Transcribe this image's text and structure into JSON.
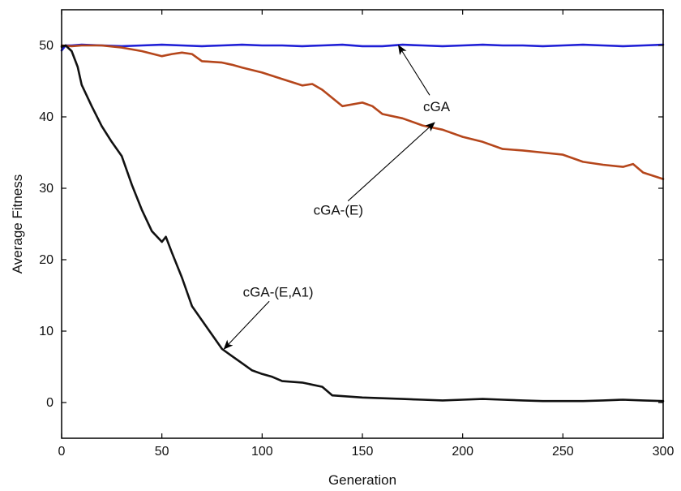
{
  "chart_data": {
    "type": "line",
    "xlabel": "Generation",
    "ylabel": "Average Fitness",
    "xlim": [
      0,
      300
    ],
    "ylim": [
      -5,
      55
    ],
    "x_ticks": [
      0,
      50,
      100,
      150,
      200,
      250,
      300
    ],
    "y_ticks": [
      0,
      10,
      20,
      30,
      40,
      50
    ],
    "grid": false,
    "series": [
      {
        "color": "#1f1fd6",
        "x": [
          0,
          2,
          5,
          10,
          20,
          30,
          40,
          50,
          60,
          70,
          80,
          90,
          100,
          110,
          120,
          130,
          140,
          150,
          160,
          170,
          180,
          190,
          200,
          210,
          220,
          230,
          240,
          250,
          260,
          270,
          280,
          290,
          300
        ],
        "y": [
          49.3,
          50.0,
          50.0,
          50.1,
          50.0,
          49.9,
          50.0,
          50.1,
          50.0,
          49.9,
          50.0,
          50.1,
          50.0,
          50.0,
          49.9,
          50.0,
          50.1,
          49.9,
          49.9,
          50.1,
          50.0,
          49.9,
          50.0,
          50.1,
          50.0,
          50.0,
          49.9,
          50.0,
          50.1,
          50.0,
          49.9,
          50.0,
          50.1
        ]
      },
      {
        "color": "#b5461b",
        "x": [
          0,
          5,
          10,
          20,
          30,
          40,
          50,
          55,
          60,
          65,
          70,
          80,
          85,
          90,
          100,
          110,
          120,
          125,
          130,
          140,
          150,
          155,
          160,
          170,
          180,
          190,
          200,
          210,
          220,
          230,
          240,
          250,
          255,
          260,
          270,
          280,
          285,
          290,
          300
        ],
        "y": [
          50.0,
          49.9,
          50.0,
          50.0,
          49.7,
          49.2,
          48.5,
          48.8,
          49.0,
          48.8,
          47.8,
          47.6,
          47.3,
          46.9,
          46.2,
          45.3,
          44.4,
          44.6,
          43.8,
          41.5,
          42.0,
          41.5,
          40.4,
          39.8,
          38.8,
          38.2,
          37.2,
          36.5,
          35.5,
          35.3,
          35.0,
          34.7,
          34.2,
          33.7,
          33.3,
          33.0,
          33.4,
          32.2,
          31.3
        ]
      },
      {
        "color": "#111111",
        "x": [
          0,
          2,
          5,
          8,
          10,
          15,
          20,
          25,
          30,
          35,
          40,
          45,
          50,
          52,
          55,
          60,
          65,
          70,
          75,
          80,
          85,
          90,
          95,
          100,
          105,
          110,
          120,
          130,
          135,
          140,
          150,
          160,
          170,
          180,
          190,
          200,
          210,
          220,
          230,
          240,
          250,
          260,
          270,
          280,
          290,
          300
        ],
        "y": [
          49.8,
          50.0,
          49.2,
          47.0,
          44.5,
          41.5,
          38.7,
          36.5,
          34.5,
          30.5,
          27.0,
          24.0,
          22.5,
          23.2,
          21.0,
          17.5,
          13.5,
          11.5,
          9.5,
          7.5,
          6.5,
          5.5,
          4.5,
          4.0,
          3.6,
          3.0,
          2.8,
          2.2,
          1.0,
          0.9,
          0.7,
          0.6,
          0.5,
          0.4,
          0.3,
          0.4,
          0.5,
          0.4,
          0.3,
          0.2,
          0.2,
          0.2,
          0.3,
          0.4,
          0.3,
          0.2
        ]
      }
    ],
    "annotations": [
      {
        "text": "cGA",
        "x": 187,
        "y": 41.5,
        "target_x": 168,
        "target_y": 50
      },
      {
        "text": "cGA-(E)",
        "x": 138,
        "y": 27.0,
        "target_x": 186,
        "target_y": 39.2
      },
      {
        "text": "cGA-(E,A1)",
        "x": 108,
        "y": 15.5,
        "target_x": 81,
        "target_y": 7.5
      }
    ]
  }
}
